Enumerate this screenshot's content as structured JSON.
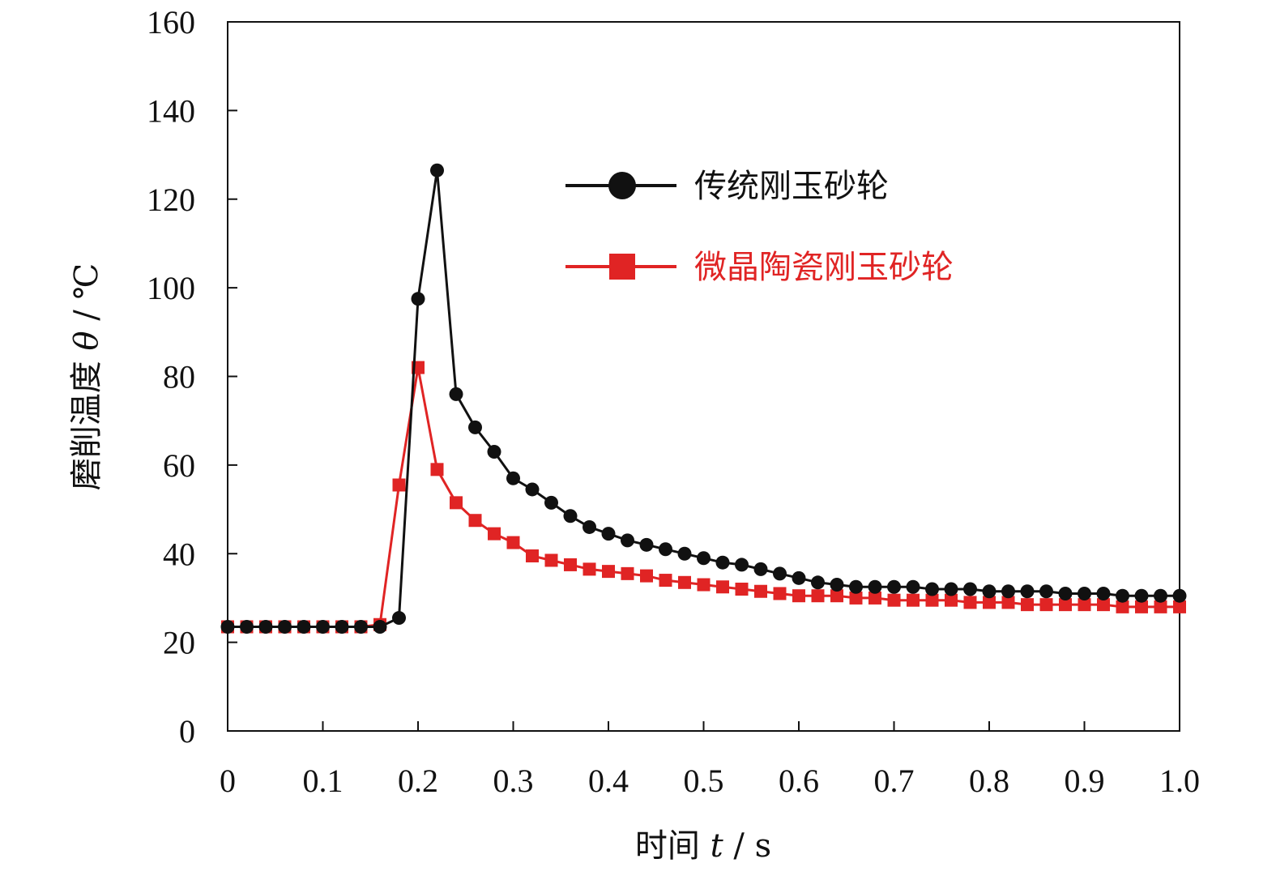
{
  "chart_data": {
    "type": "line",
    "xlabel_prefix": "时间 ",
    "xlabel_var": "t",
    "xlabel_unit": " / s",
    "ylabel_prefix": "磨削温度 ",
    "ylabel_var": "θ",
    "ylabel_unit": " / ℃",
    "xlim": [
      0,
      1.0
    ],
    "ylim": [
      0,
      160
    ],
    "xticks": [
      "0",
      "0.1",
      "0.2",
      "0.3",
      "0.4",
      "0.5",
      "0.6",
      "0.7",
      "0.8",
      "0.9",
      "1.0"
    ],
    "yticks": [
      "0",
      "20",
      "40",
      "60",
      "80",
      "100",
      "120",
      "140",
      "160"
    ],
    "legend_position": "upper-right",
    "grid": false,
    "series": [
      {
        "name": "传统刚玉砂轮",
        "color": "#111111",
        "marker": "circle",
        "x": [
          0,
          0.02,
          0.04,
          0.06,
          0.08,
          0.1,
          0.12,
          0.14,
          0.16,
          0.18,
          0.2,
          0.22,
          0.24,
          0.26,
          0.28,
          0.3,
          0.32,
          0.34,
          0.36,
          0.38,
          0.4,
          0.42,
          0.44,
          0.46,
          0.48,
          0.5,
          0.52,
          0.54,
          0.56,
          0.58,
          0.6,
          0.62,
          0.64,
          0.66,
          0.68,
          0.7,
          0.72,
          0.74,
          0.76,
          0.78,
          0.8,
          0.82,
          0.84,
          0.86,
          0.88,
          0.9,
          0.92,
          0.94,
          0.96,
          0.98,
          1.0
        ],
        "y": [
          23.5,
          23.5,
          23.5,
          23.5,
          23.5,
          23.5,
          23.5,
          23.5,
          23.5,
          25.5,
          97.5,
          126.5,
          76,
          68.5,
          63,
          57,
          54.5,
          51.5,
          48.5,
          46,
          44.5,
          43,
          42,
          41,
          40,
          39,
          38,
          37.5,
          36.5,
          35.5,
          34.5,
          33.5,
          33,
          32.5,
          32.5,
          32.5,
          32.5,
          32,
          32,
          32,
          31.5,
          31.5,
          31.5,
          31.5,
          31,
          31,
          31,
          30.5,
          30.5,
          30.5,
          30.5
        ]
      },
      {
        "name": "微晶陶瓷刚玉砂轮",
        "color": "#e02424",
        "marker": "square",
        "x": [
          0,
          0.02,
          0.04,
          0.06,
          0.08,
          0.1,
          0.12,
          0.14,
          0.16,
          0.18,
          0.2,
          0.22,
          0.24,
          0.26,
          0.28,
          0.3,
          0.32,
          0.34,
          0.36,
          0.38,
          0.4,
          0.42,
          0.44,
          0.46,
          0.48,
          0.5,
          0.52,
          0.54,
          0.56,
          0.58,
          0.6,
          0.62,
          0.64,
          0.66,
          0.68,
          0.7,
          0.72,
          0.74,
          0.76,
          0.78,
          0.8,
          0.82,
          0.84,
          0.86,
          0.88,
          0.9,
          0.92,
          0.94,
          0.96,
          0.98,
          1.0
        ],
        "y": [
          23.5,
          23.5,
          23.5,
          23.5,
          23.5,
          23.5,
          23.5,
          23.5,
          24,
          55.5,
          82,
          59,
          51.5,
          47.5,
          44.5,
          42.5,
          39.5,
          38.5,
          37.5,
          36.5,
          36,
          35.5,
          35,
          34,
          33.5,
          33,
          32.5,
          32,
          31.5,
          31,
          30.5,
          30.5,
          30.5,
          30,
          30,
          29.5,
          29.5,
          29.5,
          29.5,
          29,
          29,
          29,
          28.5,
          28.5,
          28.5,
          28.5,
          28.5,
          28,
          28,
          28,
          28
        ]
      }
    ]
  }
}
